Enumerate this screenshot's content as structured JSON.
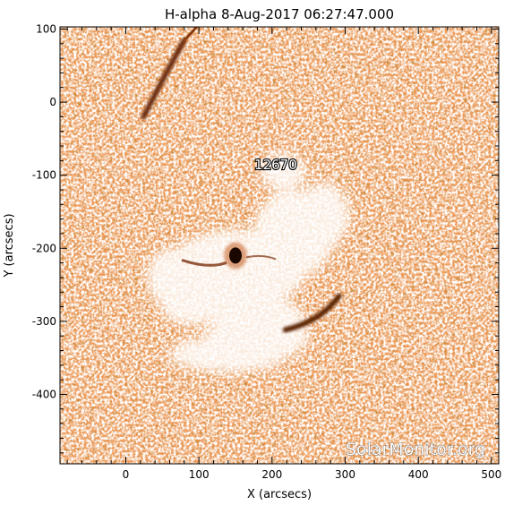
{
  "title": "H-alpha  8-Aug-2017 06:27:47.000",
  "watermark": "SolarMonitor.org",
  "chart_data": {
    "type": "heatmap",
    "title": "H-alpha  8-Aug-2017 06:27:47.000",
    "xlabel": "X (arcsecs)",
    "ylabel": "Y (arcsecs)",
    "xlim": [
      -90,
      510
    ],
    "ylim": [
      -495,
      103
    ],
    "xticks": [
      0,
      100,
      200,
      300,
      400,
      500
    ],
    "yticks": [
      100,
      0,
      -100,
      -200,
      -300,
      -400
    ],
    "colormap": [
      "#ffffff",
      "#f9cfa8",
      "#ee9b5c",
      "#d66b27",
      "#8a3a0f",
      "#2a0d00"
    ],
    "annotations": [
      {
        "text": "12670",
        "x": 205,
        "y": -92
      }
    ],
    "features": [
      {
        "name": "sunspot",
        "x": 150,
        "y": -210
      },
      {
        "name": "filament",
        "x": 55,
        "y": 35
      },
      {
        "name": "filament",
        "x": 255,
        "y": -275
      }
    ]
  }
}
